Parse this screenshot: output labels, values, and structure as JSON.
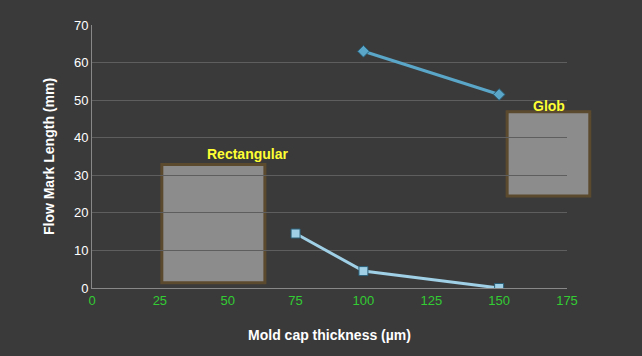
{
  "chart_data": {
    "type": "line",
    "x_label": "Mold cap thickness (µm)",
    "y_label": "Flow Mark Length (mm)",
    "series": [
      {
        "name": "Rectangular",
        "x": [
          75,
          100,
          150
        ],
        "values": [
          14.5,
          4.5,
          0
        ],
        "color": "#9fd0e6",
        "marker": "square",
        "line_style": "solid"
      },
      {
        "name": "Glob",
        "x": [
          100,
          150
        ],
        "values": [
          63,
          51.5
        ],
        "color": "#5aa6c8",
        "marker": "diamond",
        "line_style": "solid"
      }
    ],
    "xlim": [
      0,
      175
    ],
    "xticks": [
      0,
      25,
      50,
      75,
      100,
      125,
      150,
      175
    ],
    "ylim": [
      0,
      70
    ],
    "yticks": [
      0,
      10,
      20,
      30,
      40,
      50,
      60,
      70
    ],
    "grid": true
  }
}
